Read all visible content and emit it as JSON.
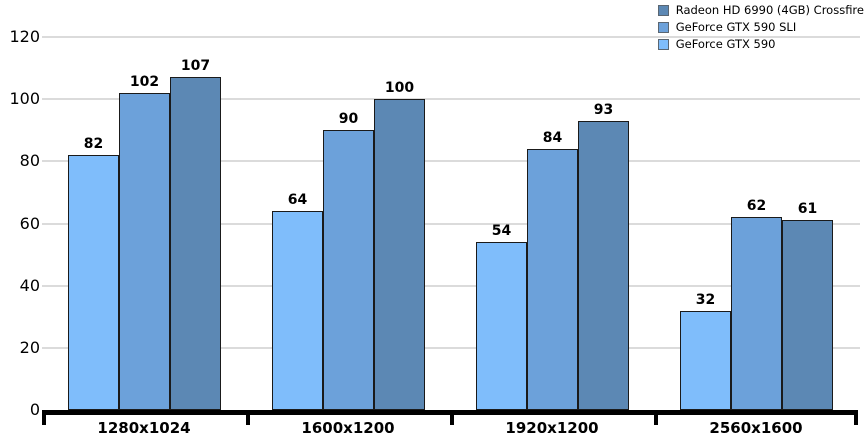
{
  "chart_data": {
    "type": "bar",
    "title": "",
    "categories": [
      "1280x1024",
      "1600x1200",
      "1920x1200",
      "2560x1600"
    ],
    "series": [
      {
        "name": "GeForce GTX 590",
        "color": "#7FBDFB",
        "values": [
          82,
          64,
          54,
          32
        ]
      },
      {
        "name": "GeForce GTX 590 SLI",
        "color": "#6CA1DA",
        "values": [
          102,
          90,
          84,
          62
        ]
      },
      {
        "name": "Radeon HD 6990 (4GB) Crossfire",
        "color": "#5C88B4",
        "values": [
          107,
          100,
          93,
          61
        ]
      }
    ],
    "xlabel": "",
    "ylabel": "",
    "ylim": [
      0,
      120
    ],
    "yticks": [
      0,
      20,
      40,
      60,
      80,
      100,
      120
    ],
    "grid": true,
    "bar_labels": true,
    "legend_position": "top-right",
    "legend_order": "reversed-of-series"
  },
  "colors": {
    "background": "#FFFFFF",
    "gridline": "#DBDBDB",
    "axis": "#000000",
    "bar_border": "#1A1A1A",
    "text": "#000000",
    "legend_swatch_border": "#5A6672"
  }
}
